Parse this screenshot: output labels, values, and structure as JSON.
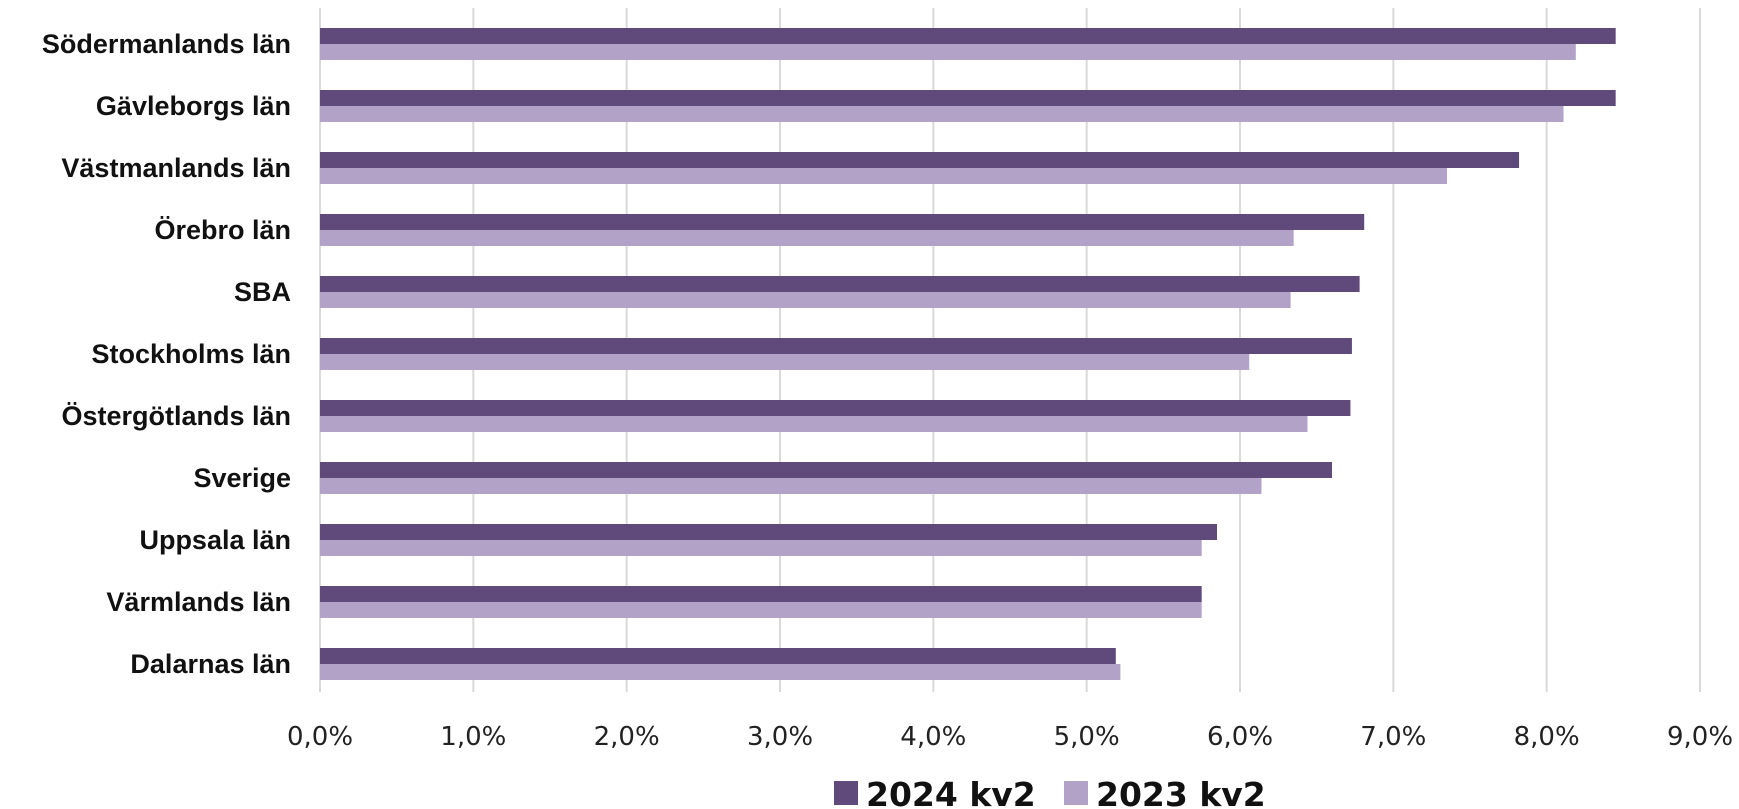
{
  "chart_data": {
    "type": "bar",
    "orientation": "horizontal",
    "categories": [
      "Södermanlands län",
      "Gävleborgs län",
      "Västmanlands län",
      "Örebro län",
      "SBA",
      "Stockholms län",
      "Östergötlands län",
      "Sverige",
      "Uppsala län",
      "Värmlands län",
      "Dalarnas län"
    ],
    "series": [
      {
        "name": "2024 kv2",
        "color": "#604a7b",
        "values": [
          8.45,
          8.45,
          7.82,
          6.81,
          6.78,
          6.73,
          6.72,
          6.6,
          5.85,
          5.75,
          5.19
        ]
      },
      {
        "name": "2023 kv2",
        "color": "#b3a2c7",
        "values": [
          8.19,
          8.11,
          7.35,
          6.35,
          6.33,
          6.06,
          6.44,
          6.14,
          5.75,
          5.75,
          5.22
        ]
      }
    ],
    "xlim": [
      0,
      9
    ],
    "xticks": [
      "0,0%",
      "1,0%",
      "2,0%",
      "3,0%",
      "4,0%",
      "5,0%",
      "6,0%",
      "7,0%",
      "8,0%",
      "9,0%"
    ],
    "grid": true,
    "legend_position": "bottom",
    "title": "",
    "xlabel": "",
    "ylabel": ""
  }
}
